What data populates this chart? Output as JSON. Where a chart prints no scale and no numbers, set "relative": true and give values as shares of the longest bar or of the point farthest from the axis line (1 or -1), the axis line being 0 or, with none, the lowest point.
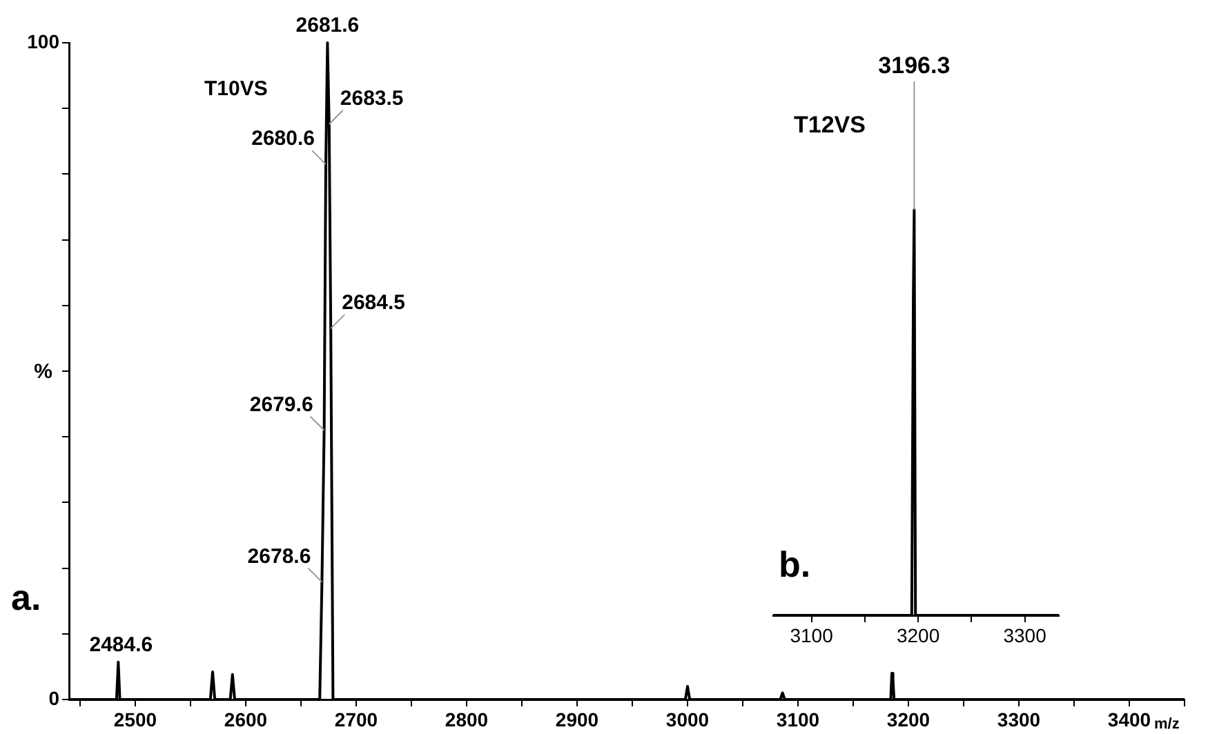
{
  "chart_data": [
    {
      "type": "line",
      "xlabel": "m/z",
      "ylabel": "%",
      "marker": "none",
      "annotations": [
        "a.",
        "T10VS",
        {
          "text": "2681.6",
          "x": 2674,
          "y": 100
        },
        {
          "text": "2683.5",
          "x": 2675.5,
          "y": 87.6
        },
        {
          "text": "2680.6",
          "x": 2672.5,
          "y": 81.5
        },
        {
          "text": "2684.5",
          "x": 2677,
          "y": 56.5
        },
        {
          "text": "2679.6",
          "x": 2671,
          "y": 41
        },
        {
          "text": "2678.6",
          "x": 2669,
          "y": 17.9
        },
        {
          "text": "2484.6",
          "x": 2484.6,
          "y": 5.7
        }
      ],
      "xlim": [
        2440,
        3450
      ],
      "xticks": [
        {
          "value": 2450,
          "label": null
        },
        2500,
        {
          "value": 2550,
          "label": null
        },
        2600,
        {
          "value": 2650,
          "label": null
        },
        2700,
        {
          "value": 2750,
          "label": null
        },
        2800,
        {
          "value": 2850,
          "label": null
        },
        2900,
        {
          "value": 2950,
          "label": null
        },
        3000,
        {
          "value": 3050,
          "label": null
        },
        3100,
        {
          "value": 3150,
          "label": null
        },
        3200,
        {
          "value": 3250,
          "label": null
        },
        3300,
        {
          "value": 3350,
          "label": null
        },
        3400,
        {
          "value": 3450,
          "label": null
        }
      ],
      "ylim": [
        0,
        100
      ],
      "yticks": [
        0,
        {
          "value": 10,
          "label": null
        },
        {
          "value": 20,
          "label": null
        },
        {
          "value": 30,
          "label": null
        },
        {
          "value": 40,
          "label": null
        },
        {
          "value": 50,
          "label": null
        },
        {
          "value": 60,
          "label": null
        },
        {
          "value": 70,
          "label": null
        },
        {
          "value": 80,
          "label": null
        },
        {
          "value": 90,
          "label": null
        },
        100
      ],
      "color": "#000000",
      "x": [
        2440,
        2483,
        2484.6,
        2486,
        2568,
        2570,
        2572,
        2586,
        2588,
        2590,
        2667,
        2669,
        2671,
        2672.5,
        2674,
        2675.5,
        2677,
        2679,
        2998,
        3000,
        3002,
        3084,
        3086,
        3088,
        3184,
        3185,
        3186,
        3187,
        3450
      ],
      "values": [
        0,
        0,
        5.7,
        0,
        0,
        4.2,
        0,
        0,
        3.8,
        0,
        0,
        17.9,
        41,
        81.5,
        100,
        87.6,
        56.5,
        0,
        0,
        2,
        0,
        0,
        1,
        0,
        0,
        4,
        3,
        0,
        0
      ]
    },
    {
      "type": "line",
      "relative": true,
      "marker": "none",
      "annotations": [
        "b.",
        "T12VS",
        {
          "text": "3196.3",
          "x": 3196.3,
          "y": 1
        }
      ],
      "xlim": [
        3064,
        3332
      ],
      "xticks": [
        3100,
        {
          "value": 3150,
          "label": null
        },
        3200,
        {
          "value": 3250,
          "label": null
        },
        3300
      ],
      "color": "#000000",
      "x": [
        3064,
        3194,
        3195.5,
        3196.3,
        3197.5,
        3332
      ],
      "values": [
        0,
        0,
        0.79,
        1,
        0,
        0
      ]
    }
  ]
}
